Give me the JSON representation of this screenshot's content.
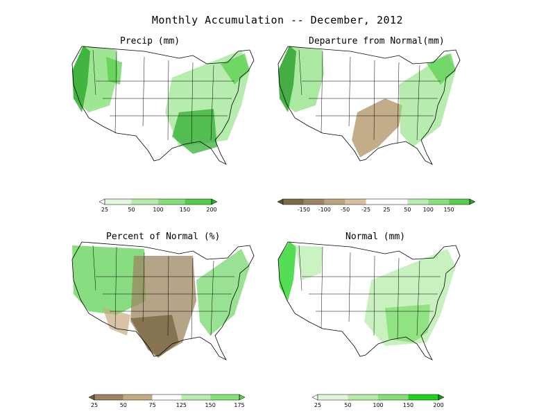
{
  "title": "Monthly Accumulation -- December, 2012",
  "panels": {
    "precip": {
      "title": "Precip (mm)",
      "colorbar": {
        "colors": [
          "#ffffff",
          "#e2f7dc",
          "#b5ecaa",
          "#86df78",
          "#52cd47",
          "#2aa92a"
        ],
        "labels": [
          "25",
          "50",
          "100",
          "150",
          "200"
        ]
      }
    },
    "departure": {
      "title": "Departure from Normal(mm)",
      "colorbar": {
        "colors": [
          "#5e5037",
          "#7d6b48",
          "#9c8660",
          "#bda47c",
          "#d8c09a",
          "#ffffff",
          "#ffffff",
          "#b8eeae",
          "#87e07a",
          "#55cf4b",
          "#2a9f2a"
        ],
        "labels": [
          "-150",
          "-100",
          "-50",
          "-25",
          "25",
          "50",
          "100",
          "150"
        ]
      }
    },
    "percent": {
      "title": "Percent of Normal (%)",
      "colorbar": {
        "colors": [
          "#6d5f3f",
          "#9c8660",
          "#c6ab82",
          "#ffffff",
          "#b8eeae",
          "#87e07a",
          "#55cf4b"
        ],
        "labels": [
          "25",
          "50",
          "75",
          "125",
          "150",
          "175"
        ]
      }
    },
    "normal": {
      "title": "Normal (mm)",
      "colorbar": {
        "colors": [
          "#ffffff",
          "#e2f7dc",
          "#b5ecaa",
          "#86df78",
          "#1ed21e",
          "#149614"
        ],
        "labels": [
          "25",
          "50",
          "100",
          "150",
          "200"
        ]
      }
    }
  }
}
